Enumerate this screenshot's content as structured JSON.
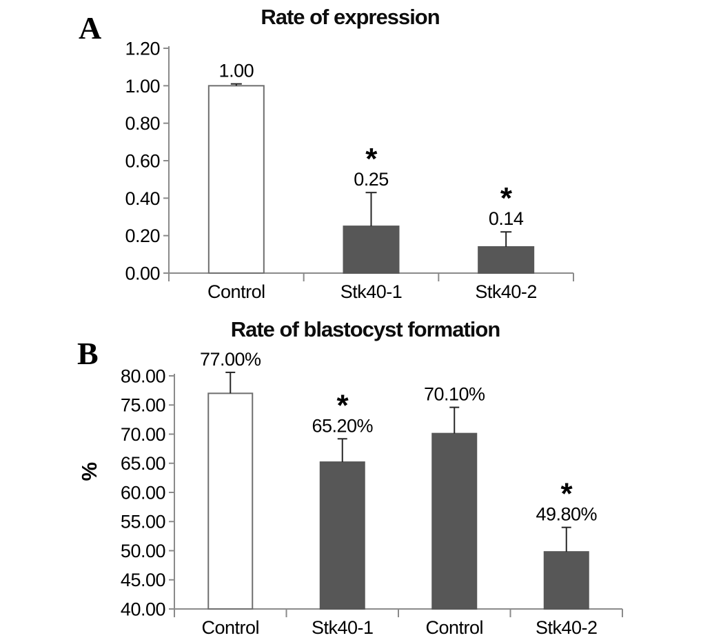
{
  "figure": {
    "background": "#ffffff",
    "panels": [
      {
        "letter": "A",
        "title": "Rate of expression"
      },
      {
        "letter": "B",
        "title": "Rate of blastocyst formation"
      }
    ]
  },
  "chart_data": [
    {
      "type": "bar",
      "panel": "A",
      "title": "Rate of expression",
      "categories": [
        "Control",
        "Stk40-1",
        "Stk40-2"
      ],
      "values": [
        1.0,
        0.25,
        0.14
      ],
      "value_labels": [
        "1.00",
        "0.25",
        "0.14"
      ],
      "significance": [
        false,
        true,
        true
      ],
      "significance_symbol": "*",
      "error_up": [
        0.01,
        0.18,
        0.08
      ],
      "bar_styles": [
        "white",
        "dark",
        "dark"
      ],
      "xlabel": "",
      "ylabel": "",
      "ylim": [
        0,
        1.2
      ],
      "yticks": [
        "0.00",
        "0.20",
        "0.40",
        "0.60",
        "0.80",
        "1.00",
        "1.20"
      ],
      "grid": false,
      "legend_position": "none"
    },
    {
      "type": "bar",
      "panel": "B",
      "title": "Rate of blastocyst formation",
      "categories": [
        "Control",
        "Stk40-1",
        "Control",
        "Stk40-2"
      ],
      "values": [
        77.0,
        65.2,
        70.1,
        49.8
      ],
      "value_labels": [
        "77.00%",
        "65.20%",
        "70.10%",
        "49.80%"
      ],
      "significance": [
        false,
        true,
        false,
        true
      ],
      "significance_symbol": "*",
      "error_up": [
        3.6,
        4.0,
        4.5,
        4.2
      ],
      "bar_styles": [
        "white",
        "dark",
        "dark",
        "dark"
      ],
      "xlabel": "",
      "ylabel": "%",
      "ylim": [
        40.0,
        80.0
      ],
      "yticks": [
        "40.00",
        "45.00",
        "50.00",
        "55.00",
        "60.00",
        "65.00",
        "70.00",
        "75.00",
        "80.00"
      ],
      "grid": false,
      "legend_position": "none"
    }
  ],
  "colors": {
    "bar_dark": "#575757",
    "bar_white": "#ffffff",
    "bar_border": "#6e6e6e",
    "axis": "#8a8a8a",
    "error_bar": "#262626",
    "text": "#000000"
  }
}
